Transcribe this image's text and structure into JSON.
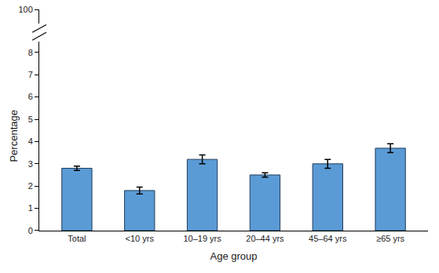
{
  "chart_data": {
    "type": "bar",
    "x_label": "Age group",
    "y_label": "Percentage",
    "categories": [
      "Total",
      "<10 yrs",
      "10–19 yrs",
      "20–44 yrs",
      "45–64 yrs",
      "≥65 yrs"
    ],
    "values": [
      2.8,
      1.8,
      3.2,
      2.5,
      3.0,
      3.7
    ],
    "errors": [
      0.1,
      0.15,
      0.2,
      0.1,
      0.2,
      0.2
    ],
    "color": "#5b9bd5",
    "ylim": [
      0,
      8.5
    ],
    "yticks": [
      0,
      1,
      2,
      3,
      4,
      5,
      6,
      7,
      8
    ],
    "y2lim": [
      99,
      100
    ],
    "y2ticks": [
      100
    ],
    "grid": false
  }
}
